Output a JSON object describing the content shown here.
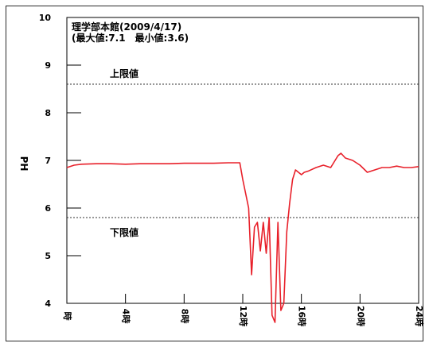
{
  "chart_data": {
    "type": "line",
    "title_line1": "理学部本館(2009/4/17)",
    "title_line2": "(最大値:7.1　最小値:3.6)",
    "ylabel": "PH",
    "xlabel": "",
    "xlim": [
      0,
      24
    ],
    "ylim": [
      4,
      10
    ],
    "x_ticks": [
      0,
      4,
      8,
      12,
      16,
      20,
      24
    ],
    "x_tick_labels": [
      "時",
      "4時",
      "8時",
      "12時",
      "16時",
      "20時",
      "24時"
    ],
    "y_ticks": [
      4,
      5,
      6,
      7,
      8,
      9,
      10
    ],
    "y_tick_labels": [
      "4",
      "5",
      "6",
      "7",
      "8",
      "9",
      "10"
    ],
    "grid": false,
    "reference_lines": [
      {
        "label": "上限値",
        "value": 8.6
      },
      {
        "label": "下限値",
        "value": 5.8
      }
    ],
    "series": [
      {
        "color": "#e8202a",
        "x": [
          0,
          0.5,
          1,
          2,
          3,
          4,
          5,
          6,
          7,
          8,
          9,
          10,
          11,
          11.5,
          11.8,
          12,
          12.2,
          12.4,
          12.6,
          12.8,
          13.0,
          13.2,
          13.4,
          13.6,
          13.8,
          14.0,
          14.2,
          14.4,
          14.6,
          14.8,
          15.0,
          15.2,
          15.4,
          15.6,
          15.8,
          16.0,
          16.2,
          16.5,
          17,
          17.5,
          18,
          18.5,
          18.7,
          19,
          19.5,
          20,
          20.5,
          21,
          21.5,
          22,
          22.5,
          23,
          23.5,
          24
        ],
        "y": [
          6.85,
          6.9,
          6.92,
          6.93,
          6.93,
          6.92,
          6.93,
          6.93,
          6.93,
          6.94,
          6.94,
          6.94,
          6.95,
          6.95,
          6.95,
          6.6,
          6.3,
          6.0,
          4.6,
          5.6,
          5.7,
          5.1,
          5.7,
          5.05,
          5.8,
          3.75,
          3.6,
          5.7,
          3.85,
          4.0,
          5.5,
          6.1,
          6.6,
          6.8,
          6.75,
          6.7,
          6.75,
          6.78,
          6.85,
          6.9,
          6.85,
          7.1,
          7.15,
          7.05,
          7.0,
          6.9,
          6.75,
          6.8,
          6.85,
          6.85,
          6.88,
          6.85,
          6.85,
          6.87
        ]
      }
    ]
  }
}
